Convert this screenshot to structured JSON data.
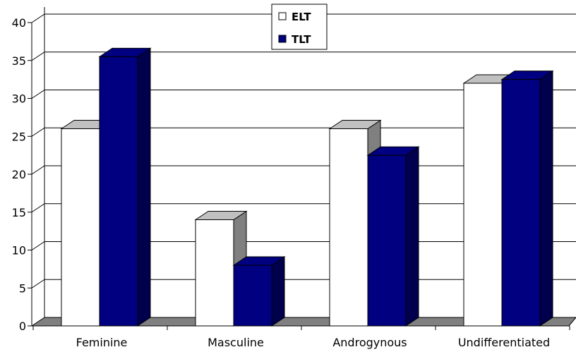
{
  "chart_data": {
    "type": "bar",
    "categories": [
      "Feminine",
      "Masculine",
      "Androgynous",
      "Undifferentiated"
    ],
    "series": [
      {
        "name": "ELT",
        "values": [
          26,
          14,
          26,
          32
        ],
        "color": "#ffffff",
        "side_color": "#808080",
        "top_color": "#c0c0c0"
      },
      {
        "name": "TLT",
        "values": [
          35.5,
          8,
          22.5,
          32.5
        ],
        "color": "#000080",
        "side_color": "#00004d",
        "top_color": "#000080"
      }
    ],
    "ylim": [
      0,
      40
    ],
    "yticks": [
      0,
      5,
      10,
      15,
      20,
      25,
      30,
      35,
      40
    ],
    "grid": true,
    "legend": "top-center",
    "floor_color": "#808080"
  }
}
